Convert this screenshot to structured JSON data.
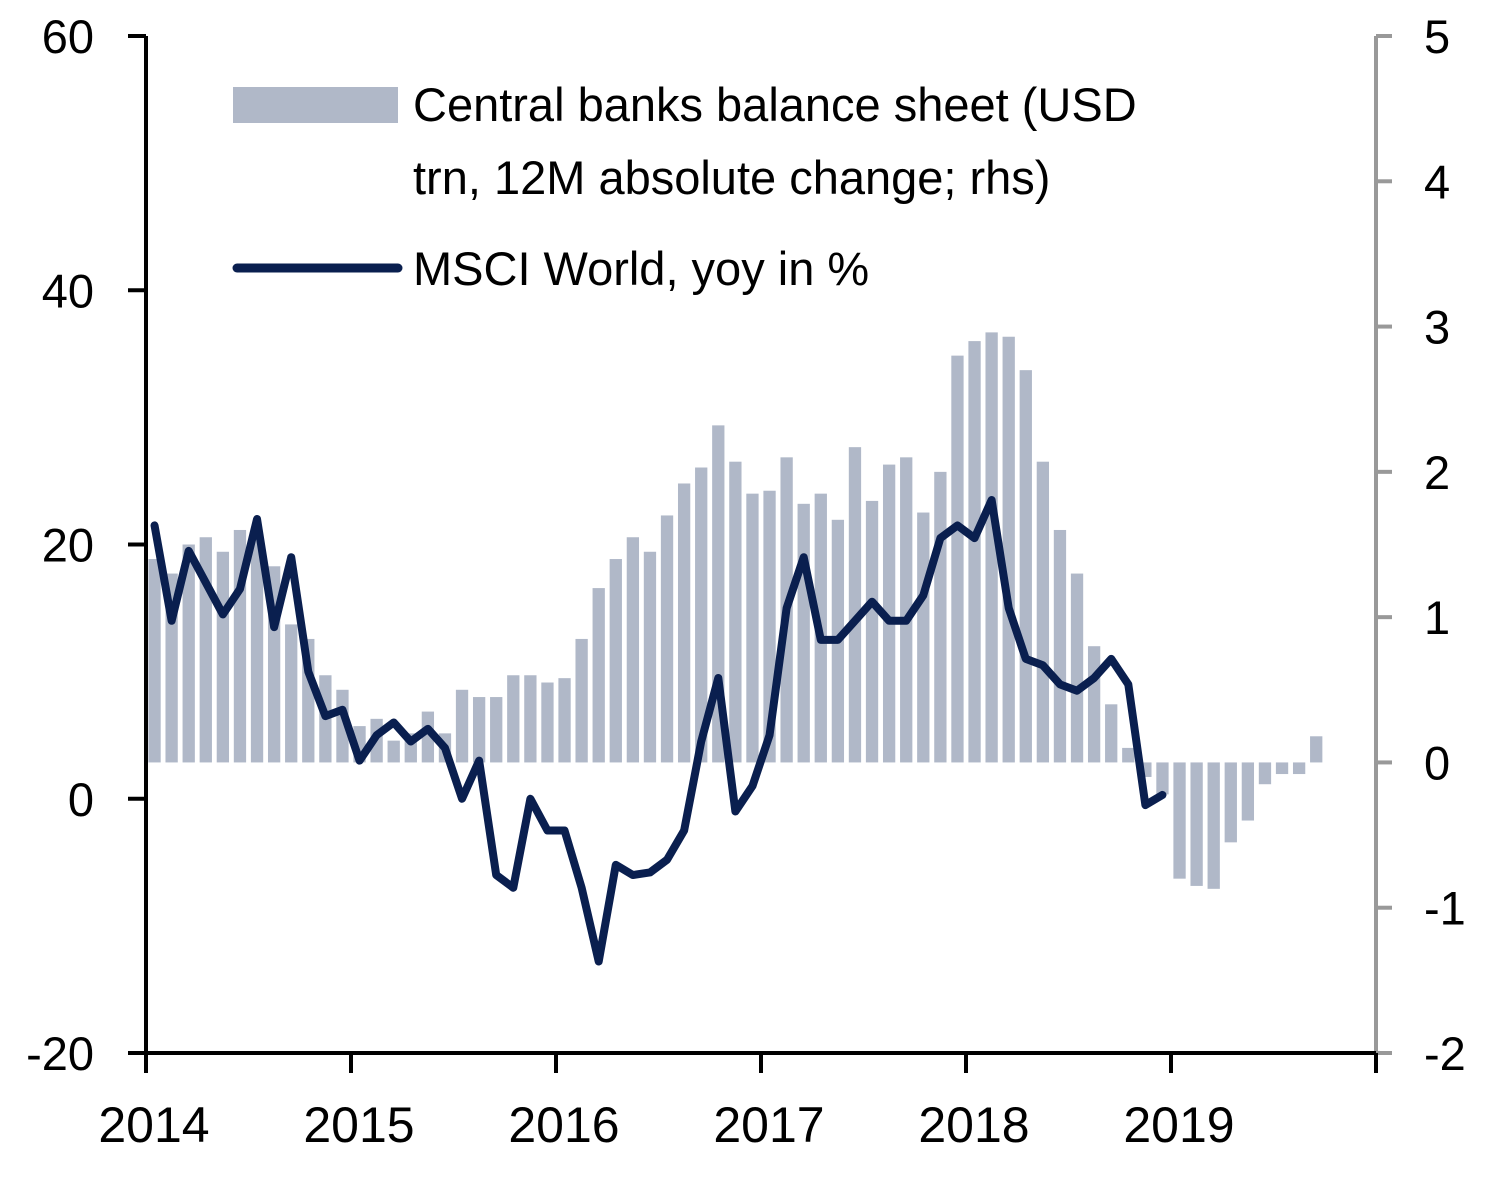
{
  "chart_data": {
    "type": "bar+line",
    "title": "",
    "x_tick_labels": [
      "2014",
      "2015",
      "2016",
      "2017",
      "2018",
      "2019"
    ],
    "x_range": [
      "2014-01",
      "2019-12"
    ],
    "y_left": {
      "min": -20,
      "max": 60,
      "ticks": [
        60,
        40,
        20,
        0,
        -20
      ]
    },
    "y_right": {
      "min": -2,
      "max": 5,
      "ticks": [
        5,
        4,
        3,
        2,
        1,
        0,
        -1,
        -2
      ]
    },
    "grid": false,
    "legend_position": "top-left",
    "series": [
      {
        "name_lines": [
          "Central banks balance sheet (USD",
          "trn, 12M absolute change; rhs)"
        ],
        "type": "bar",
        "axis": "right",
        "color": "#b0b8c8",
        "x": [
          "2014-01",
          "2014-02",
          "2014-03",
          "2014-04",
          "2014-05",
          "2014-06",
          "2014-07",
          "2014-08",
          "2014-09",
          "2014-10",
          "2014-11",
          "2014-12",
          "2015-01",
          "2015-02",
          "2015-03",
          "2015-04",
          "2015-05",
          "2015-06",
          "2015-07",
          "2015-08",
          "2015-09",
          "2015-10",
          "2015-11",
          "2015-12",
          "2016-01",
          "2016-02",
          "2016-03",
          "2016-04",
          "2016-05",
          "2016-06",
          "2016-07",
          "2016-08",
          "2016-09",
          "2016-10",
          "2016-11",
          "2016-12",
          "2017-01",
          "2017-02",
          "2017-03",
          "2017-04",
          "2017-05",
          "2017-06",
          "2017-07",
          "2017-08",
          "2017-09",
          "2017-10",
          "2017-11",
          "2017-12",
          "2018-01",
          "2018-02",
          "2018-03",
          "2018-04",
          "2018-05",
          "2018-06",
          "2018-07",
          "2018-08",
          "2018-09",
          "2018-10",
          "2018-11",
          "2018-12",
          "2019-01",
          "2019-02",
          "2019-03",
          "2019-04",
          "2019-05",
          "2019-06",
          "2019-07",
          "2019-08",
          "2019-09"
        ],
        "values": [
          1.4,
          1.3,
          1.5,
          1.55,
          1.45,
          1.6,
          1.55,
          1.35,
          0.95,
          0.85,
          0.6,
          0.5,
          0.25,
          0.3,
          0.15,
          0.2,
          0.35,
          0.2,
          0.5,
          0.45,
          0.45,
          0.6,
          0.6,
          0.55,
          0.58,
          0.85,
          1.2,
          1.4,
          1.55,
          1.45,
          1.7,
          1.92,
          2.03,
          2.32,
          2.07,
          1.85,
          1.87,
          2.1,
          1.78,
          1.85,
          1.67,
          2.17,
          1.8,
          2.05,
          2.1,
          1.72,
          2.0,
          2.8,
          2.9,
          2.96,
          2.93,
          2.7,
          2.07,
          1.6,
          1.3,
          0.8,
          0.4,
          0.1,
          -0.1,
          -0.22,
          -0.8,
          -0.85,
          -0.87,
          -0.55,
          -0.4,
          -0.15,
          -0.08,
          -0.08,
          0.18
        ]
      },
      {
        "name": "MSCI World, yoy in %",
        "type": "line",
        "axis": "left",
        "color": "#0a1f4f",
        "x": [
          "2014-01",
          "2014-02",
          "2014-03",
          "2014-04",
          "2014-05",
          "2014-06",
          "2014-07",
          "2014-08",
          "2014-09",
          "2014-10",
          "2014-11",
          "2014-12",
          "2015-01",
          "2015-02",
          "2015-03",
          "2015-04",
          "2015-05",
          "2015-06",
          "2015-07",
          "2015-08",
          "2015-09",
          "2015-10",
          "2015-11",
          "2015-12",
          "2016-01",
          "2016-02",
          "2016-03",
          "2016-04",
          "2016-05",
          "2016-06",
          "2016-07",
          "2016-08",
          "2016-09",
          "2016-10",
          "2016-11",
          "2016-12",
          "2017-01",
          "2017-02",
          "2017-03",
          "2017-04",
          "2017-05",
          "2017-06",
          "2017-07",
          "2017-08",
          "2017-09",
          "2017-10",
          "2017-11",
          "2017-12",
          "2018-01",
          "2018-02",
          "2018-03",
          "2018-04",
          "2018-05",
          "2018-06",
          "2018-07",
          "2018-08",
          "2018-09",
          "2018-10",
          "2018-11",
          "2018-12"
        ],
        "values": [
          21.5,
          14.0,
          19.5,
          17.0,
          14.5,
          16.5,
          22.0,
          13.5,
          19.0,
          10.0,
          6.5,
          7.0,
          3.0,
          5.0,
          6.0,
          4.5,
          5.5,
          4.0,
          0.0,
          3.0,
          -6.0,
          -7.0,
          0.0,
          -2.5,
          -2.5,
          -7.0,
          -12.8,
          -5.2,
          -6.0,
          -5.8,
          -4.8,
          -2.5,
          4.5,
          9.5,
          -1.0,
          1.0,
          5.0,
          15.0,
          19.0,
          12.5,
          12.5,
          14.0,
          15.5,
          14.0,
          14.0,
          16.0,
          20.5,
          21.5,
          20.5,
          23.5,
          15.0,
          11.0,
          10.5,
          9.0,
          8.5,
          9.5,
          11.0,
          9.0,
          -0.5,
          0.3
        ]
      }
    ]
  }
}
